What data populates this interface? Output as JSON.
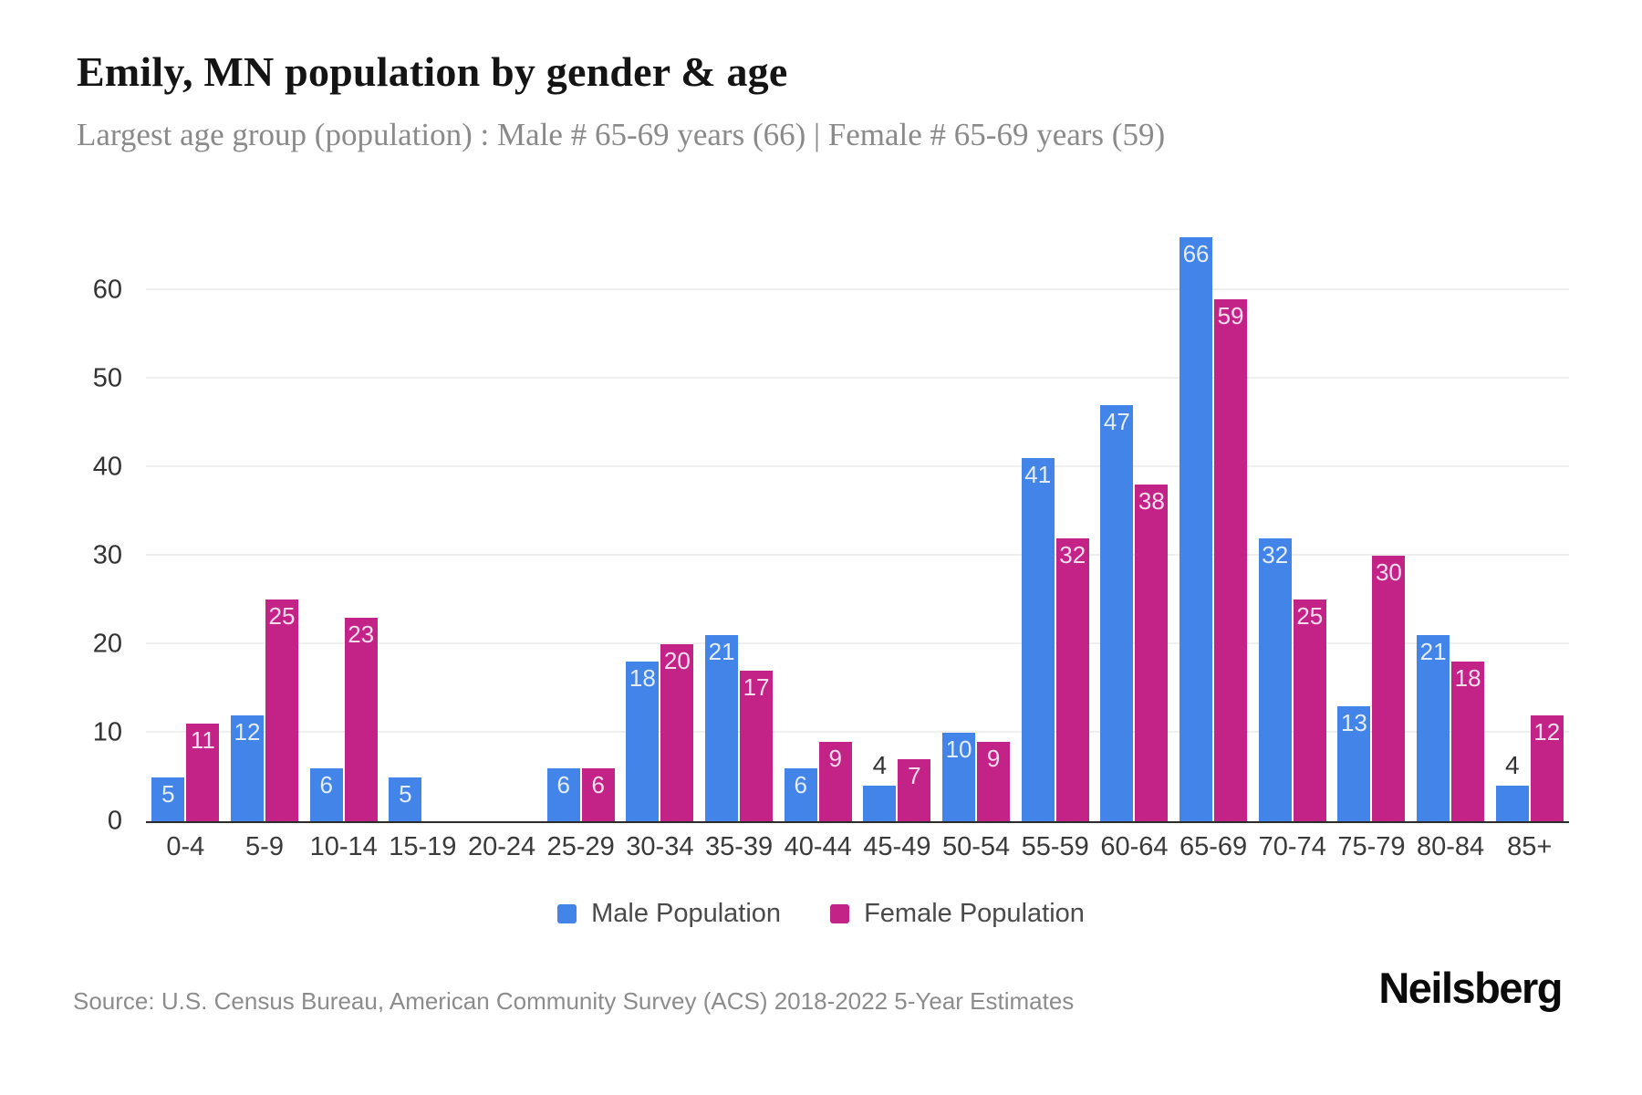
{
  "page": {
    "title": "Emily, MN population by gender & age",
    "subtitle": "Largest age group (population) : Male # 65-69 years (66) | Female # 65-69 years (59)",
    "source": "Source: U.S. Census Bureau, American Community Survey (ACS) 2018-2022 5-Year Estimates",
    "logo": "Neilsberg"
  },
  "chart_data": {
    "type": "bar",
    "title": "Emily, MN population by gender & age",
    "subtitle": "Largest age group (population) : Male # 65-69 years (66) | Female # 65-69 years (59)",
    "categories": [
      "0-4",
      "5-9",
      "10-14",
      "15-19",
      "20-24",
      "25-29",
      "30-34",
      "35-39",
      "40-44",
      "45-49",
      "50-54",
      "55-59",
      "60-64",
      "65-69",
      "70-74",
      "75-79",
      "80-84",
      "85+"
    ],
    "series": [
      {
        "name": "Male Population",
        "color": "#4384E8",
        "values": [
          5,
          12,
          6,
          5,
          0,
          6,
          18,
          21,
          6,
          4,
          10,
          41,
          47,
          66,
          32,
          13,
          21,
          4
        ]
      },
      {
        "name": "Female Population",
        "color": "#C32287",
        "values": [
          11,
          25,
          23,
          0,
          0,
          6,
          20,
          17,
          9,
          7,
          9,
          32,
          38,
          59,
          25,
          30,
          18,
          12
        ]
      }
    ],
    "xlabel": "",
    "ylabel": "",
    "yticks": [
      0,
      10,
      20,
      30,
      40,
      50,
      60
    ],
    "ylim": [
      0,
      67
    ],
    "grid": true,
    "legend_position": "bottom",
    "value_labels": true,
    "value_label_inside_min": 5,
    "colors": {
      "grid": "#efefef",
      "axis": "#2b2b2b",
      "tick_text": "#333333",
      "value_label_inside": "rgba(255,255,255,0.85)",
      "value_label_outside": "#333333"
    }
  }
}
